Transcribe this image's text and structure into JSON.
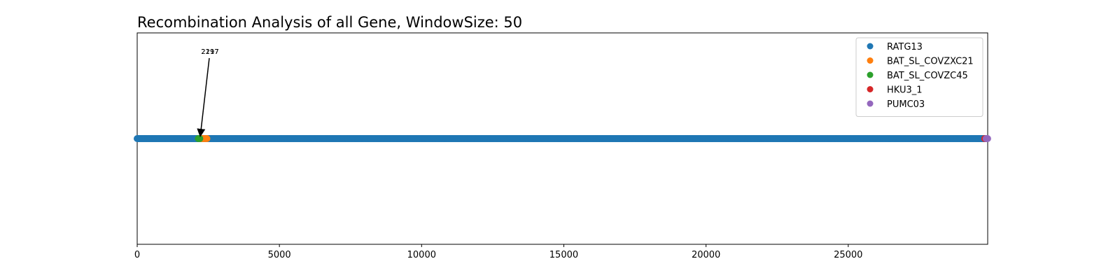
{
  "chart_data": {
    "type": "scatter",
    "title": "Recombination Analysis of all Gene, WindowSize: 50",
    "xlabel": "",
    "ylabel": "",
    "xlim": [
      0,
      29903
    ],
    "ylim": [
      -0.06,
      0.06
    ],
    "xticks": [
      0,
      5000,
      10000,
      15000,
      20000,
      25000
    ],
    "grid": false,
    "legend_position": "top-right",
    "series": [
      {
        "name": "RATG13",
        "color": "#1f77b4",
        "ranges": [
          [
            0,
            29850
          ]
        ],
        "y": 0
      },
      {
        "name": "BAT_SL_COVZXC21",
        "color": "#ff7f0e",
        "points": [
          2250,
          2300,
          2350,
          2400,
          2450
        ],
        "y": 0
      },
      {
        "name": "BAT_SL_COVZC45",
        "color": "#2ca02c",
        "points": [
          2150,
          2200
        ],
        "y": 0
      },
      {
        "name": "HKU3_1",
        "color": "#d62728",
        "points": [
          29800
        ],
        "y": 0
      },
      {
        "name": "PUMC03",
        "color": "#9467bd",
        "points": [
          29850,
          29900
        ],
        "y": 0
      }
    ],
    "annotations": [
      {
        "text": "2197",
        "x": 2197,
        "y": 0,
        "arrow": true
      },
      {
        "text": "2217",
        "x": 2217,
        "y": 0,
        "arrow": false
      }
    ]
  }
}
